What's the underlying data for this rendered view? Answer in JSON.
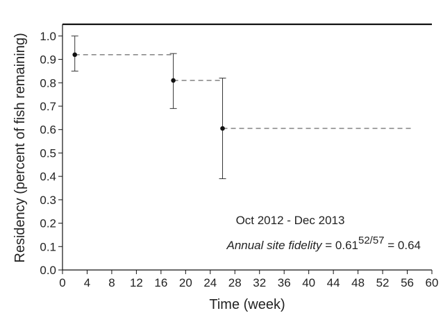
{
  "chart_data": {
    "type": "line",
    "xlabel": "Time (week)",
    "ylabel": "Residency (percent of fish remaining)",
    "xlim": [
      0,
      60
    ],
    "ylim": [
      0,
      1.05
    ],
    "x_ticks": [
      0,
      4,
      8,
      12,
      16,
      20,
      24,
      28,
      32,
      36,
      40,
      44,
      48,
      52,
      56,
      60
    ],
    "y_ticks": [
      0.0,
      0.1,
      0.2,
      0.3,
      0.4,
      0.5,
      0.6,
      0.7,
      0.8,
      0.9,
      1.0
    ],
    "grid": false,
    "points": [
      {
        "x": 2,
        "y": 0.92,
        "lower": 0.85,
        "upper": 1.0
      },
      {
        "x": 18,
        "y": 0.81,
        "lower": 0.69,
        "upper": 0.925
      },
      {
        "x": 26,
        "y": 0.605,
        "lower": 0.39,
        "upper": 0.82
      }
    ],
    "step_line": {
      "style": "dashed",
      "end_x": 57
    },
    "annotations": {
      "period": "Oct 2012 - Dec 2013",
      "fidelity_label": "Annual site fidelity",
      "fidelity_equals": " = 0.61",
      "fidelity_exponent": "52/57",
      "fidelity_result": " = 0.64"
    }
  }
}
